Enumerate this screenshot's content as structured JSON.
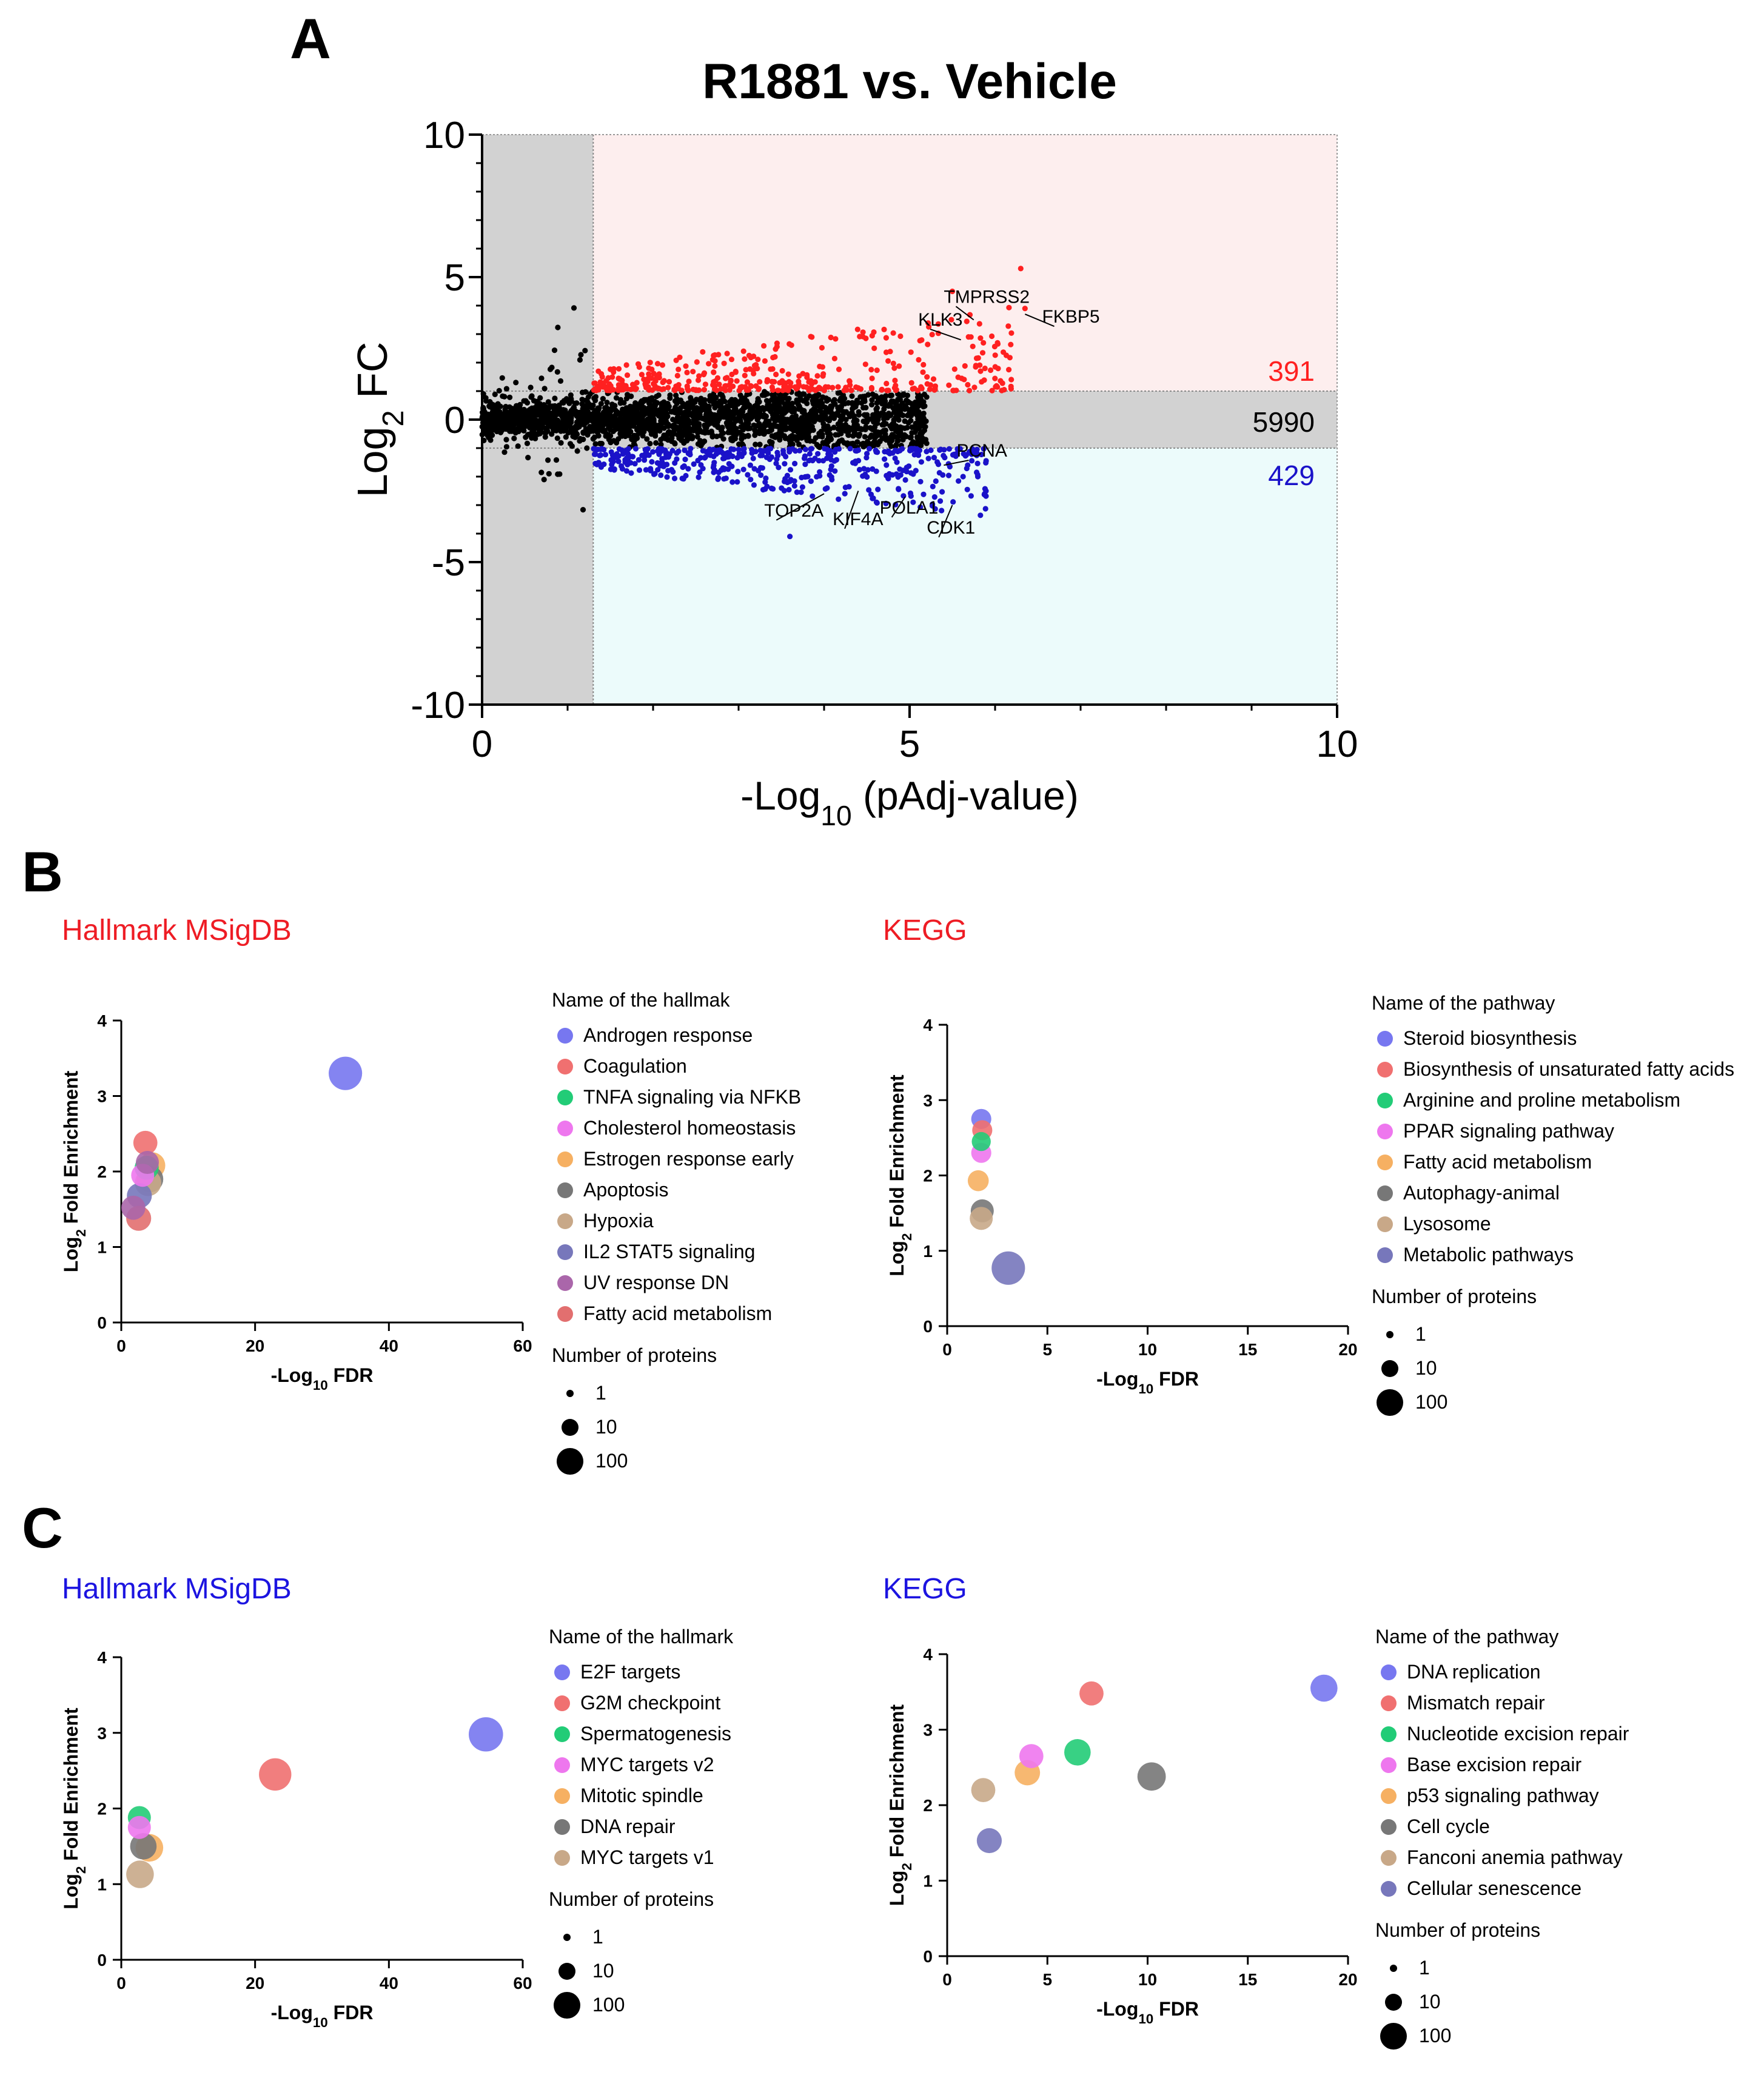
{
  "colors": {
    "up": "#ff2020",
    "down": "#1a12c9",
    "neutral": "#000000",
    "upRegion": "#fdeeee",
    "downRegion": "#ecfbfb",
    "grayRegion": "#d2d2d2",
    "titleRed": "#ee1c24",
    "titleBlue": "#1c14e0"
  },
  "panels": {
    "A": "A",
    "B": "B",
    "C": "C"
  },
  "chart_data": [
    {
      "id": "volcano",
      "type": "scatter",
      "title": "R1881 vs. Vehicle",
      "xlabel_pre": "-Log",
      "xlabel_sub": "10",
      "xlabel_post": " (pAdj-value)",
      "ylabel_pre": "Log",
      "ylabel_sub": "2",
      "ylabel_post": " FC",
      "xlim": [
        0,
        10
      ],
      "ylim": [
        -10,
        10
      ],
      "xticks": [
        "0",
        "5",
        "10"
      ],
      "yticks": [
        "10",
        "5",
        "0",
        "-5",
        "-10"
      ],
      "fdr_threshold": 1.3,
      "fc_threshold": 1,
      "counts": {
        "up": "391",
        "ns": "5990",
        "down": "429"
      },
      "labels": [
        {
          "text": "TMPRSS2",
          "x": 5.75,
          "y": 3.5,
          "tx": 5.4,
          "ty": 4.1
        },
        {
          "text": "KLK3",
          "x": 5.6,
          "y": 2.8,
          "tx": 5.1,
          "ty": 3.3
        },
        {
          "text": "FKBP5",
          "x": 6.35,
          "y": 3.7,
          "tx": 6.55,
          "ty": 3.4
        },
        {
          "text": "PCNA",
          "x": 5.4,
          "y": -1.6,
          "tx": 5.55,
          "ty": -1.3
        },
        {
          "text": "TOP2A",
          "x": 4.0,
          "y": -2.6,
          "tx": 3.3,
          "ty": -3.4
        },
        {
          "text": "KIF4A",
          "x": 4.4,
          "y": -2.5,
          "tx": 4.1,
          "ty": -3.7
        },
        {
          "text": "POLA1",
          "x": 4.95,
          "y": -2.7,
          "tx": 4.65,
          "ty": -3.3
        },
        {
          "text": "CDK1",
          "x": 5.5,
          "y": -3.0,
          "tx": 5.2,
          "ty": -4.0
        }
      ]
    },
    {
      "id": "B-hallmark",
      "type": "scatter",
      "title": "Hallmark MSigDB",
      "xlabel": "-Log",
      "xlabel_sub": "10",
      "xlabel_post": " FDR",
      "ylabel": "Log",
      "ylabel_sub": "2",
      "ylabel_post": " Fold Enrichment",
      "xlim": [
        0,
        60
      ],
      "ylim": [
        0,
        4
      ],
      "xticks": [
        0,
        20,
        40,
        60
      ],
      "yticks": [
        0,
        1,
        2,
        3,
        4
      ],
      "legend_title": "Name of the hallmak",
      "size_title": "Number of proteins",
      "size_labels": [
        "1",
        "10",
        "100"
      ],
      "series": [
        {
          "name": "Androgen response",
          "color": "#7777f0",
          "x": 33.5,
          "y": 3.3,
          "n": 60
        },
        {
          "name": "Coagulation",
          "color": "#f07070",
          "x": 3.6,
          "y": 2.38,
          "n": 12
        },
        {
          "name": "TNFA signaling via NFKB",
          "color": "#22cc77",
          "x": 3.8,
          "y": 2.05,
          "n": 12
        },
        {
          "name": "Cholesterol homeostasis",
          "color": "#ee77ee",
          "x": 3.2,
          "y": 1.95,
          "n": 10
        },
        {
          "name": "Estrogen response early",
          "color": "#f6b062",
          "x": 4.6,
          "y": 2.08,
          "n": 18
        },
        {
          "name": "Apoptosis",
          "color": "#777777",
          "x": 4.3,
          "y": 1.9,
          "n": 18
        },
        {
          "name": "Hypoxia",
          "color": "#c8a888",
          "x": 4.0,
          "y": 1.85,
          "n": 18
        },
        {
          "name": "IL2 STAT5 signaling",
          "color": "#7777bb",
          "x": 2.7,
          "y": 1.68,
          "n": 14
        },
        {
          "name": "UV response DN",
          "color": "#aa66aa",
          "x": 3.9,
          "y": 2.12,
          "n": 10
        },
        {
          "name": "Fatty acid metabolism",
          "color": "#e26f6f",
          "x": 2.6,
          "y": 1.38,
          "n": 14
        },
        {
          "name": "",
          "color": "#aa66aa",
          "x": 1.8,
          "y": 1.52,
          "n": 12
        }
      ]
    },
    {
      "id": "B-kegg",
      "type": "scatter",
      "title": "KEGG",
      "xlabel": "-Log",
      "xlabel_sub": "10",
      "xlabel_post": " FDR",
      "ylabel": "Log",
      "ylabel_sub": "2",
      "ylabel_post": " Fold Enrichment",
      "xlim": [
        0,
        20
      ],
      "ylim": [
        0,
        4
      ],
      "xticks": [
        0,
        5,
        10,
        15,
        20
      ],
      "yticks": [
        0,
        1,
        2,
        3,
        4
      ],
      "legend_title": "Name of the pathway",
      "size_title": "Number of proteins",
      "size_labels": [
        "1",
        "10",
        "100"
      ],
      "series": [
        {
          "name": "Steroid biosynthesis",
          "color": "#7777f0",
          "x": 1.7,
          "y": 2.75,
          "n": 6
        },
        {
          "name": "Biosynthesis of unsaturated fatty acids",
          "color": "#f07070",
          "x": 1.75,
          "y": 2.6,
          "n": 6
        },
        {
          "name": "Arginine and proline metabolism",
          "color": "#22cc77",
          "x": 1.7,
          "y": 2.45,
          "n": 5
        },
        {
          "name": "PPAR signaling pathway",
          "color": "#ee77ee",
          "x": 1.7,
          "y": 2.3,
          "n": 6
        },
        {
          "name": "Fatty acid metabolism",
          "color": "#f6b062",
          "x": 1.55,
          "y": 1.93,
          "n": 7
        },
        {
          "name": "Autophagy-animal",
          "color": "#777777",
          "x": 1.75,
          "y": 1.53,
          "n": 10
        },
        {
          "name": "Lysosome",
          "color": "#c8a888",
          "x": 1.7,
          "y": 1.43,
          "n": 10
        },
        {
          "name": "Metabolic pathways",
          "color": "#7777bb",
          "x": 3.05,
          "y": 0.77,
          "n": 60
        }
      ]
    },
    {
      "id": "C-hallmark",
      "type": "scatter",
      "title": "Hallmark MSigDB",
      "xlabel": "-Log",
      "xlabel_sub": "10",
      "xlabel_post": " FDR",
      "ylabel": "Log",
      "ylabel_sub": "2",
      "ylabel_post": " Fold Enrichment",
      "xlim": [
        0,
        60
      ],
      "ylim": [
        0,
        4
      ],
      "xticks": [
        0,
        20,
        40,
        60
      ],
      "yticks": [
        0,
        1,
        2,
        3,
        4
      ],
      "legend_title": "Name of the hallmark",
      "size_title": "Number of proteins",
      "size_labels": [
        "1",
        "10",
        "100"
      ],
      "series": [
        {
          "name": "E2F targets",
          "color": "#7777f0",
          "x": 54.5,
          "y": 2.98,
          "n": 70
        },
        {
          "name": "G2M checkpoint",
          "color": "#f07070",
          "x": 23.0,
          "y": 2.45,
          "n": 50
        },
        {
          "name": "Spermatogenesis",
          "color": "#22cc77",
          "x": 2.7,
          "y": 1.88,
          "n": 10
        },
        {
          "name": "MYC targets v2",
          "color": "#ee77ee",
          "x": 2.7,
          "y": 1.75,
          "n": 10
        },
        {
          "name": "Mitotic spindle",
          "color": "#f6b062",
          "x": 4.2,
          "y": 1.48,
          "n": 22
        },
        {
          "name": "DNA repair",
          "color": "#777777",
          "x": 3.3,
          "y": 1.5,
          "n": 18
        },
        {
          "name": "MYC targets v1",
          "color": "#c8a888",
          "x": 2.8,
          "y": 1.13,
          "n": 22
        }
      ]
    },
    {
      "id": "C-kegg",
      "type": "scatter",
      "title": "KEGG",
      "xlabel": "-Log",
      "xlabel_sub": "10",
      "xlabel_post": " FDR",
      "ylabel": "Log",
      "ylabel_sub": "2",
      "ylabel_post": " Fold Enrichment",
      "xlim": [
        0,
        20
      ],
      "ylim": [
        0,
        4
      ],
      "xticks": [
        0,
        5,
        10,
        15,
        20
      ],
      "yticks": [
        0,
        1,
        2,
        3,
        4
      ],
      "legend_title": "Name of the pathway",
      "size_title": "Number of proteins",
      "size_labels": [
        "1",
        "10",
        "100"
      ],
      "series": [
        {
          "name": "DNA replication",
          "color": "#7777f0",
          "x": 18.8,
          "y": 3.55,
          "n": 20
        },
        {
          "name": "Mismatch repair",
          "color": "#f07070",
          "x": 7.2,
          "y": 3.48,
          "n": 12
        },
        {
          "name": "Nucleotide excision repair",
          "color": "#22cc77",
          "x": 6.5,
          "y": 2.7,
          "n": 18
        },
        {
          "name": "Base excision repair",
          "color": "#ee77ee",
          "x": 4.2,
          "y": 2.65,
          "n": 12
        },
        {
          "name": "p53 signaling pathway",
          "color": "#f6b062",
          "x": 4.0,
          "y": 2.43,
          "n": 15
        },
        {
          "name": "Cell cycle",
          "color": "#777777",
          "x": 10.2,
          "y": 2.38,
          "n": 25
        },
        {
          "name": "Fanconi anemia pathway",
          "color": "#c8a888",
          "x": 1.8,
          "y": 2.2,
          "n": 12
        },
        {
          "name": "Cellular senescence",
          "color": "#7777bb",
          "x": 2.1,
          "y": 1.53,
          "n": 14
        }
      ]
    }
  ]
}
